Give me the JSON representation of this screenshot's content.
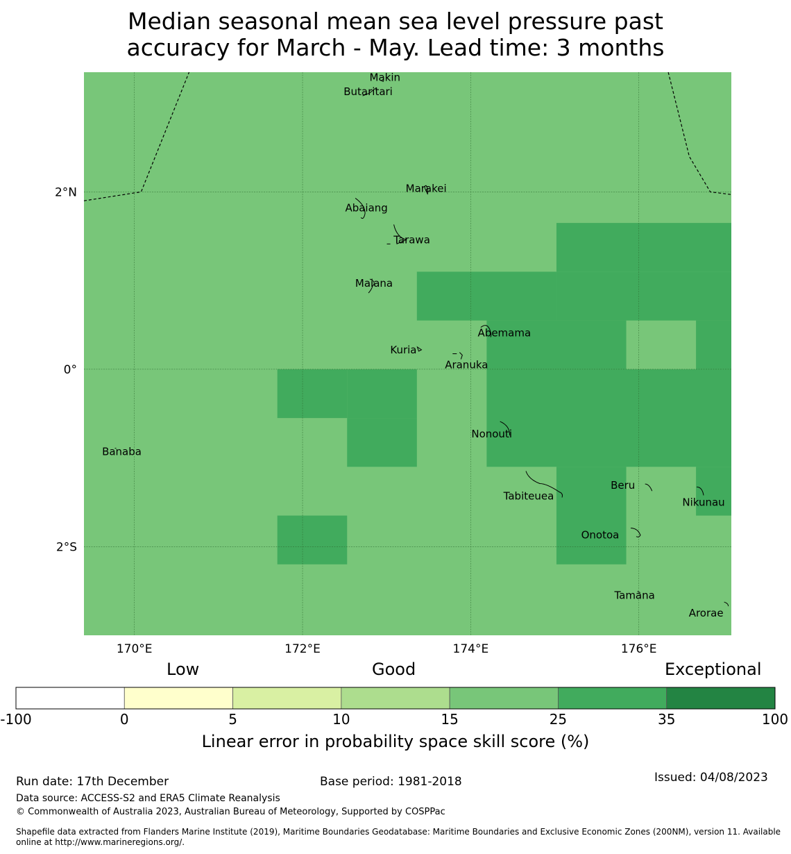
{
  "title": {
    "line1": "Median seasonal mean sea level pressure past",
    "line2": "accuracy for March - May. Lead time: 3 months"
  },
  "map": {
    "extent": {
      "lon_min": 169.4,
      "lon_max": 177.1,
      "lat_min": -3.0,
      "lat_max": 3.35
    },
    "background_color": "#78c679",
    "cells": [
      {
        "lon": [
          172.53,
          173.36
        ],
        "lat": [
          -0.55,
          -0.0
        ],
        "color": "#41ab5d"
      },
      {
        "lon": [
          171.7,
          172.53
        ],
        "lat": [
          -0.55,
          0.0
        ],
        "color": "#41ab5d"
      },
      {
        "lon": [
          172.53,
          173.36
        ],
        "lat": [
          -1.1,
          -0.55
        ],
        "color": "#41ab5d"
      },
      {
        "lon": [
          171.7,
          172.53
        ],
        "lat": [
          -2.2,
          -1.65
        ],
        "color": "#41ab5d"
      },
      {
        "lon": [
          173.36,
          175.02
        ],
        "lat": [
          0.55,
          1.1
        ],
        "color": "#41ab5d"
      },
      {
        "lon": [
          175.02,
          177.1
        ],
        "lat": [
          1.1,
          1.65
        ],
        "color": "#41ab5d"
      },
      {
        "lon": [
          175.02,
          177.1
        ],
        "lat": [
          0.55,
          1.1
        ],
        "color": "#41ab5d"
      },
      {
        "lon": [
          174.19,
          175.85
        ],
        "lat": [
          0.0,
          0.55
        ],
        "color": "#41ab5d"
      },
      {
        "lon": [
          176.68,
          177.1
        ],
        "lat": [
          0.0,
          0.55
        ],
        "color": "#41ab5d"
      },
      {
        "lon": [
          174.19,
          177.1
        ],
        "lat": [
          -1.1,
          0.0
        ],
        "color": "#41ab5d"
      },
      {
        "lon": [
          175.02,
          175.85
        ],
        "lat": [
          -2.2,
          -1.1
        ],
        "color": "#41ab5d"
      },
      {
        "lon": [
          176.68,
          177.1
        ],
        "lat": [
          -1.65,
          -1.1
        ],
        "color": "#41ab5d"
      }
    ],
    "gridlines": {
      "lon": [
        170,
        172,
        174,
        176
      ],
      "lat": [
        2,
        0,
        -2
      ]
    },
    "x_tick_labels": [
      "170°E",
      "172°E",
      "174°E",
      "176°E"
    ],
    "y_tick_labels": [
      "2°N",
      "0°",
      "2°S"
    ],
    "eez_boundary_west": [
      [
        169.4,
        1.9
      ],
      [
        170.08,
        2.0
      ],
      [
        170.65,
        3.35
      ]
    ],
    "eez_boundary_east": [
      [
        176.35,
        3.35
      ],
      [
        176.6,
        2.4
      ],
      [
        176.85,
        2.0
      ],
      [
        177.1,
        1.97
      ]
    ],
    "islands": [
      {
        "name": "Makin",
        "lon": 172.98,
        "lat": 3.29
      },
      {
        "name": "Butaritari",
        "lon": 172.78,
        "lat": 3.13
      },
      {
        "name": "Marakei",
        "lon": 173.47,
        "lat": 2.04
      },
      {
        "name": "Abaiang",
        "lon": 172.76,
        "lat": 1.82
      },
      {
        "name": "Tarawa",
        "lon": 173.3,
        "lat": 1.46
      },
      {
        "name": "Maiana",
        "lon": 172.85,
        "lat": 0.97
      },
      {
        "name": "Abemama",
        "lon": 174.4,
        "lat": 0.41
      },
      {
        "name": "Kuria",
        "lon": 173.2,
        "lat": 0.22
      },
      {
        "name": "Aranuka",
        "lon": 173.95,
        "lat": 0.05
      },
      {
        "name": "Banaba",
        "lon": 169.85,
        "lat": -0.93
      },
      {
        "name": "Nonouti",
        "lon": 174.25,
        "lat": -0.73
      },
      {
        "name": "Tabiteuea",
        "lon": 174.69,
        "lat": -1.43
      },
      {
        "name": "Beru",
        "lon": 175.81,
        "lat": -1.31
      },
      {
        "name": "Nikunau",
        "lon": 176.77,
        "lat": -1.5
      },
      {
        "name": "Onotoa",
        "lon": 175.54,
        "lat": -1.87
      },
      {
        "name": "Tamana",
        "lon": 175.95,
        "lat": -2.55
      },
      {
        "name": "Arorae",
        "lon": 176.8,
        "lat": -2.75
      }
    ]
  },
  "legend": {
    "captions": {
      "low": "Low",
      "good": "Good",
      "exceptional": "Exceptional"
    },
    "bins": [
      {
        "from": "-100",
        "to": "0",
        "color": "#ffffff"
      },
      {
        "from": "0",
        "to": "5",
        "color": "#ffffcc"
      },
      {
        "from": "5",
        "to": "10",
        "color": "#d9f0a3"
      },
      {
        "from": "10",
        "to": "15",
        "color": "#addd8e"
      },
      {
        "from": "15",
        "to": "25",
        "color": "#78c679"
      },
      {
        "from": "25",
        "to": "35",
        "color": "#41ab5d"
      },
      {
        "from": "35",
        "to": "100",
        "color": "#238443"
      }
    ],
    "ticks": [
      "-100",
      "0",
      "5",
      "10",
      "15",
      "25",
      "35",
      "100"
    ],
    "label": "Linear error in probability space skill score (%)"
  },
  "footer": {
    "run_date": "Run date: 17th December",
    "base_period": "Base period: 1981-2018",
    "issued": "Issued: 04/08/2023",
    "data_source": "Data source: ACCESS-S2 and ERA5 Climate Reanalysis",
    "copyright": "© Commonwealth of Australia 2023, Australian Bureau of Meteorology, Supported by COSPPac",
    "shapefile_line1": "Shapefile data extracted from Flanders Marine Institute (2019), Maritime Boundaries Geodatabase: Maritime Boundaries and Exclusive Economic Zones (200NM), version 11. Available",
    "shapefile_line2": "online at http://www.marineregions.org/."
  }
}
